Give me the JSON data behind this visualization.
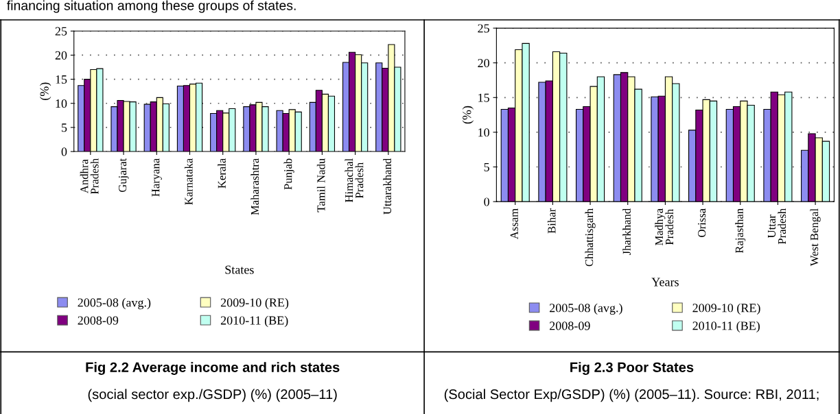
{
  "chart_data": [
    {
      "type": "bar",
      "title": "Fig 2.2 Average income and rich states",
      "subtitle": "(social sector exp./GSDP) (%) (2005–11)",
      "xlabel": "States",
      "ylabel": "(%)",
      "annotations": [
        "financing situation among these groups of states."
      ],
      "categories": [
        "Andhra\nPradesh",
        "Gujarat",
        "Haryana",
        "Karnataka",
        "Kerala",
        "Maharashtra",
        "Punjab",
        "Tamil Nadu",
        "Himachal\nPradesh",
        "Uttarakhand"
      ],
      "series": [
        {
          "name": "2005-08 (avg.)",
          "color": "#8c8cf0",
          "values": [
            13.7,
            9.3,
            9.8,
            13.6,
            7.9,
            9.3,
            8.5,
            10.2,
            18.5,
            18.4
          ]
        },
        {
          "name": "2008-09",
          "color": "#800080",
          "values": [
            15.0,
            10.6,
            10.3,
            13.7,
            8.5,
            9.7,
            7.9,
            12.7,
            20.6,
            17.3
          ]
        },
        {
          "name": "2009-10 (RE)",
          "color": "#ffffc0",
          "values": [
            17.0,
            10.4,
            11.2,
            14.0,
            8.0,
            10.2,
            8.7,
            11.9,
            20.1,
            22.2
          ]
        },
        {
          "name": "2010-11 (BE)",
          "color": "#c0fff0",
          "values": [
            17.2,
            10.3,
            9.9,
            14.2,
            8.9,
            9.3,
            8.2,
            11.5,
            18.4,
            17.5
          ]
        }
      ],
      "ylim": [
        0,
        25
      ],
      "yticks": [
        0,
        5,
        10,
        15,
        20,
        25
      ],
      "grid": "y",
      "legend": "bottom"
    },
    {
      "type": "bar",
      "title": "Fig 2.3 Poor States",
      "subtitle": "(Social Sector Exp/GSDP) (%) (2005–11). Source: RBI, 2011;",
      "xlabel": "Years",
      "ylabel": "(%)",
      "categories": [
        "Assam",
        "Bihar",
        "Chhattisgarh",
        "Jharkhand",
        "Madhya\nPradesh",
        "Orissa",
        "Rajasthan",
        "Uttar\nPradesh",
        "West Bengal"
      ],
      "series": [
        {
          "name": "2005-08 (avg.)",
          "color": "#8c8cf0",
          "values": [
            13.3,
            17.2,
            13.3,
            18.3,
            15.1,
            10.3,
            13.3,
            13.3,
            7.4
          ]
        },
        {
          "name": "2008-09",
          "color": "#800080",
          "values": [
            13.5,
            17.4,
            13.7,
            18.6,
            15.2,
            13.2,
            13.7,
            15.8,
            9.8
          ]
        },
        {
          "name": "2009-10 (RE)",
          "color": "#ffffc0",
          "values": [
            21.9,
            21.6,
            16.6,
            18.0,
            18.0,
            14.7,
            14.5,
            15.4,
            9.2
          ]
        },
        {
          "name": "2010-11 (BE)",
          "color": "#c0fff0",
          "values": [
            22.8,
            21.4,
            18.0,
            16.2,
            17.0,
            14.5,
            13.9,
            15.8,
            8.7
          ]
        }
      ],
      "ylim": [
        0,
        25
      ],
      "yticks": [
        0,
        5,
        10,
        15,
        20,
        25
      ],
      "grid": "y",
      "legend": "bottom"
    }
  ]
}
